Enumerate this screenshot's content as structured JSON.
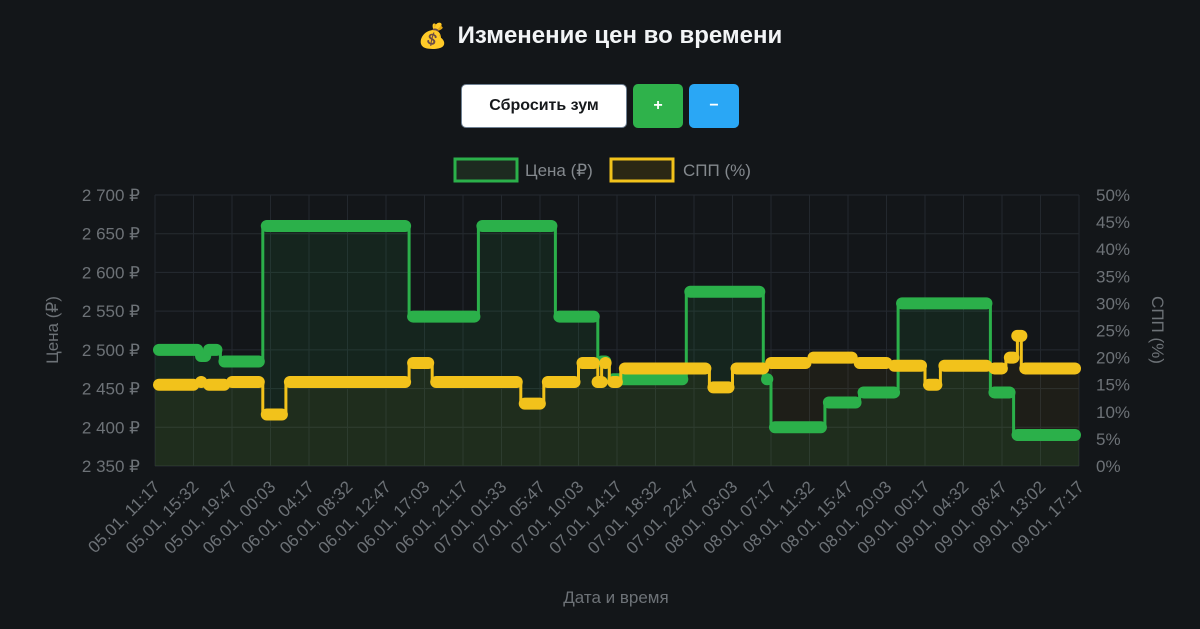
{
  "header": {
    "icon": "money-bag-icon",
    "icon_glyph": "💰",
    "title": "Изменение цен во времени"
  },
  "controls": {
    "reset_label": "Сбросить зум",
    "zoom_in_label": "+",
    "zoom_out_label": "−"
  },
  "colors": {
    "background": "#131619",
    "price": "#2bb04a",
    "spp": "#f2c21b",
    "grid": "#262b31",
    "reset_bg": "#ffffff",
    "plus_bg": "#2fb24b",
    "minus_bg": "#2aa7f5"
  },
  "chart_data": {
    "type": "line",
    "title": "",
    "xlabel": "Дата и время",
    "ylabel": "Цена (₽)",
    "y2label": "СПП (%)",
    "ylim": [
      2350,
      2700
    ],
    "y2lim": [
      0,
      50
    ],
    "yticks": [
      "2 700 ₽",
      "2 650 ₽",
      "2 600 ₽",
      "2 550 ₽",
      "2 500 ₽",
      "2 450 ₽",
      "2 400 ₽",
      "2 350 ₽"
    ],
    "y2ticks": [
      "50%",
      "45%",
      "40%",
      "35%",
      "30%",
      "25%",
      "20%",
      "15%",
      "10%",
      "5%",
      "0%"
    ],
    "xticks": [
      "05.01, 11:17",
      "05.01, 15:32",
      "05.01, 19:47",
      "06.01, 00:03",
      "06.01, 04:17",
      "06.01, 08:32",
      "06.01, 12:47",
      "06.01, 17:03",
      "06.01, 21:17",
      "07.01, 01:33",
      "07.01, 05:47",
      "07.01, 10:03",
      "07.01, 14:17",
      "07.01, 18:32",
      "07.01, 22:47",
      "08.01, 03:03",
      "08.01, 07:17",
      "08.01, 11:32",
      "08.01, 15:47",
      "08.01, 20:03",
      "09.01, 00:17",
      "09.01, 04:32",
      "09.01, 08:47",
      "09.01, 13:02",
      "09.01, 17:17"
    ],
    "grid": true,
    "legend_position": "top-center",
    "series": [
      {
        "name": "Цена (₽)",
        "axis": "left",
        "color": "#2bb04a",
        "fill": true,
        "x": [
          0,
          1.2,
          1.2,
          1.3,
          1.3,
          1.7,
          1.7,
          2.8,
          2.8,
          6.6,
          6.6,
          8.4,
          8.4,
          10.4,
          10.4,
          11.5,
          11.5,
          11.8,
          11.8,
          13.8,
          13.8,
          15.8,
          15.8,
          16.0,
          16.0,
          17.4,
          17.4,
          18.3,
          18.3,
          19.3,
          19.3,
          21.7,
          21.7,
          22.3,
          22.3,
          24
        ],
        "y": [
          2500,
          2500,
          2492,
          2492,
          2500,
          2500,
          2485,
          2485,
          2660,
          2660,
          2543,
          2543,
          2660,
          2660,
          2543,
          2543,
          2485,
          2485,
          2462,
          2462,
          2575,
          2575,
          2462,
          2462,
          2400,
          2400,
          2432,
          2432,
          2445,
          2445,
          2560,
          2560,
          2445,
          2445,
          2390,
          2390
        ]
      },
      {
        "name": "СПП (%)",
        "axis": "right",
        "color": "#f2c21b",
        "fill": true,
        "x": [
          0,
          1.1,
          1.1,
          1.3,
          1.3,
          1.9,
          1.9,
          2.8,
          2.8,
          3.4,
          3.4,
          6.6,
          6.6,
          7.2,
          7.2,
          9.5,
          9.5,
          10.1,
          10.1,
          11.0,
          11.0,
          11.5,
          11.5,
          11.6,
          11.6,
          11.8,
          11.8,
          12.1,
          12.1,
          14.4,
          14.4,
          15.0,
          15.0,
          15.9,
          15.9,
          17.0,
          17.0,
          18.2,
          18.2,
          19.1,
          19.1,
          20.0,
          20.0,
          20.4,
          20.4,
          21.7,
          21.7,
          22.1,
          22.1,
          22.4,
          22.4,
          22.5,
          22.5,
          24
        ],
        "y": [
          15,
          15,
          15.5,
          15.5,
          15,
          15,
          15.5,
          15.5,
          9.5,
          9.5,
          15.5,
          15.5,
          19,
          19,
          15.5,
          15.5,
          11.5,
          11.5,
          15.5,
          15.5,
          19,
          19,
          15.5,
          15.5,
          19,
          19,
          15.5,
          15.5,
          18,
          18,
          14.5,
          14.5,
          18,
          18,
          19,
          19,
          20,
          20,
          19,
          19,
          18.5,
          18.5,
          15,
          15,
          18.5,
          18.5,
          18,
          18,
          20,
          20,
          24,
          24,
          18,
          18
        ]
      }
    ]
  }
}
